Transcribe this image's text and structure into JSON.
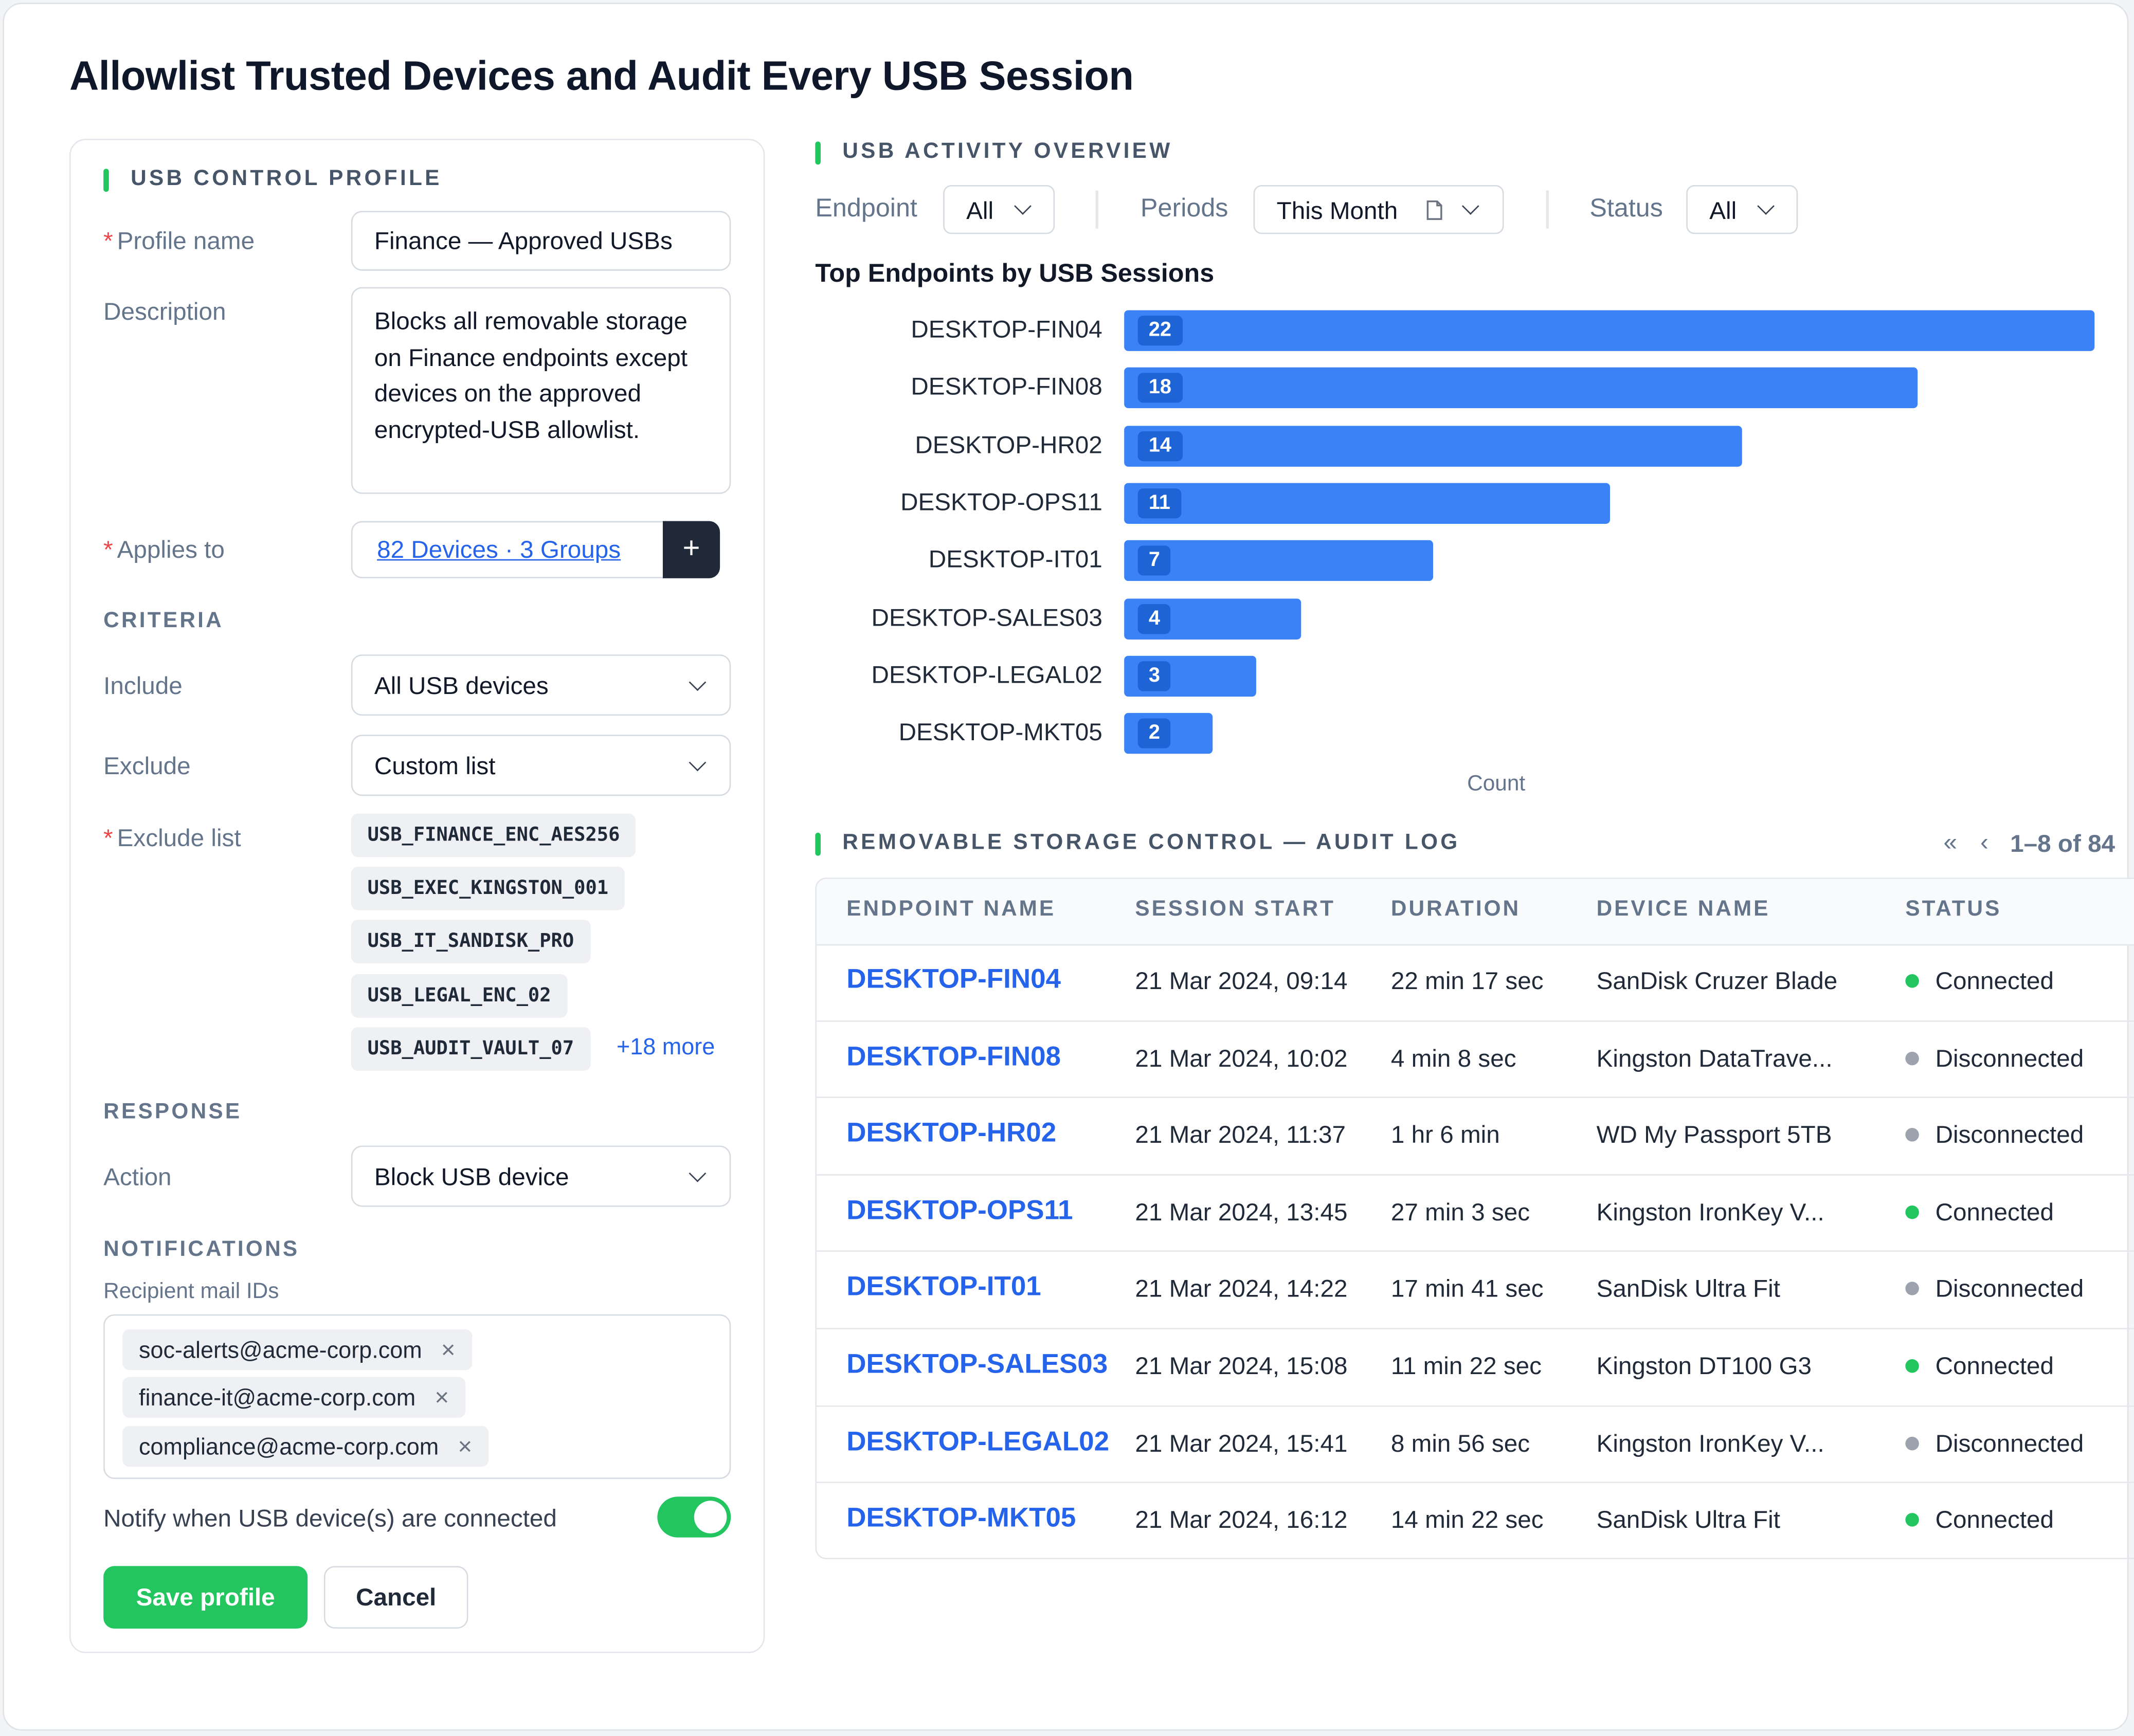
{
  "page_title": "Allowlist Trusted Devices and Audit Every USB Session",
  "profile": {
    "section_title": "USB CONTROL PROFILE",
    "profile_name_label": "Profile name",
    "profile_name_value": "Finance — Approved USBs",
    "description_label": "Description",
    "description_value": "Blocks all removable storage on Finance endpoints except devices on the approved encrypted-USB allowlist.",
    "applies_label": "Applies to",
    "applies_value": "82 Devices · 3 Groups",
    "applies_add": "+",
    "criteria_head": "CRITERIA",
    "include_label": "Include",
    "include_value": "All USB devices",
    "exclude_label": "Exclude",
    "exclude_value": "Custom list",
    "exclude_list_label": "Exclude list",
    "exclude_list": [
      "USB_FINANCE_ENC_AES256",
      "USB_EXEC_KINGSTON_001",
      "USB_IT_SANDISK_PRO",
      "USB_LEGAL_ENC_02",
      "USB_AUDIT_VAULT_07"
    ],
    "exclude_more": "+18 more",
    "response_head": "RESPONSE",
    "action_label": "Action",
    "action_value": "Block USB device",
    "notifications_head": "NOTIFICATIONS",
    "recipients_label": "Recipient mail IDs",
    "recipients": [
      "soc-alerts@acme-corp.com",
      "finance-it@acme-corp.com",
      "compliance@acme-corp.com"
    ],
    "notify_label": "Notify when USB device(s) are connected",
    "notify_on": true,
    "save_label": "Save profile",
    "cancel_label": "Cancel"
  },
  "overview": {
    "section_title": "USB ACTIVITY OVERVIEW",
    "filters": {
      "endpoint_label": "Endpoint",
      "endpoint_value": "All",
      "periods_label": "Periods",
      "periods_value": "This Month",
      "status_label": "Status",
      "status_value": "All"
    }
  },
  "chart_data": {
    "type": "bar",
    "orientation": "horizontal",
    "title": "Top Endpoints by USB Sessions",
    "xlabel": "Count",
    "categories": [
      "DESKTOP-FIN04",
      "DESKTOP-FIN08",
      "DESKTOP-HR02",
      "DESKTOP-OPS11",
      "DESKTOP-IT01",
      "DESKTOP-SALES03",
      "DESKTOP-LEGAL02",
      "DESKTOP-MKT05"
    ],
    "values": [
      22,
      18,
      14,
      11,
      7,
      4,
      3,
      2
    ],
    "xlim": [
      0,
      22
    ],
    "color": "#3b82f6",
    "grid": false
  },
  "audit": {
    "section_title": "REMOVABLE STORAGE CONTROL — AUDIT LOG",
    "pagination": "1–8 of 84",
    "columns": [
      "ENDPOINT NAME",
      "SESSION START",
      "DURATION",
      "DEVICE NAME",
      "STATUS"
    ],
    "rows": [
      {
        "endpoint": "DESKTOP-FIN04",
        "start": "21 Mar 2024, 09:14",
        "duration": "22 min 17 sec",
        "device": "SanDisk Cruzer Blade",
        "status": "Connected"
      },
      {
        "endpoint": "DESKTOP-FIN08",
        "start": "21 Mar 2024, 10:02",
        "duration": "4 min 8 sec",
        "device": "Kingston DataTrave...",
        "status": "Disconnected"
      },
      {
        "endpoint": "DESKTOP-HR02",
        "start": "21 Mar 2024, 11:37",
        "duration": "1 hr 6 min",
        "device": "WD My Passport 5TB",
        "status": "Disconnected"
      },
      {
        "endpoint": "DESKTOP-OPS11",
        "start": "21 Mar 2024, 13:45",
        "duration": "27 min 3 sec",
        "device": "Kingston IronKey V...",
        "status": "Connected"
      },
      {
        "endpoint": "DESKTOP-IT01",
        "start": "21 Mar 2024, 14:22",
        "duration": "17 min 41 sec",
        "device": "SanDisk Ultra Fit",
        "status": "Disconnected"
      },
      {
        "endpoint": "DESKTOP-SALES03",
        "start": "21 Mar 2024, 15:08",
        "duration": "11 min 22 sec",
        "device": "Kingston DT100 G3",
        "status": "Connected"
      },
      {
        "endpoint": "DESKTOP-LEGAL02",
        "start": "21 Mar 2024, 15:41",
        "duration": "8 min 56 sec",
        "device": "Kingston IronKey V...",
        "status": "Disconnected"
      },
      {
        "endpoint": "DESKTOP-MKT05",
        "start": "21 Mar 2024, 16:12",
        "duration": "14 min 22 sec",
        "device": "SanDisk Ultra Fit",
        "status": "Connected"
      }
    ]
  },
  "colors": {
    "accent_green": "#22c55e",
    "link_blue": "#2563eb",
    "bar_blue": "#3b82f6",
    "status_connected": "#22c55e",
    "status_disconnected": "#9ca3af"
  }
}
